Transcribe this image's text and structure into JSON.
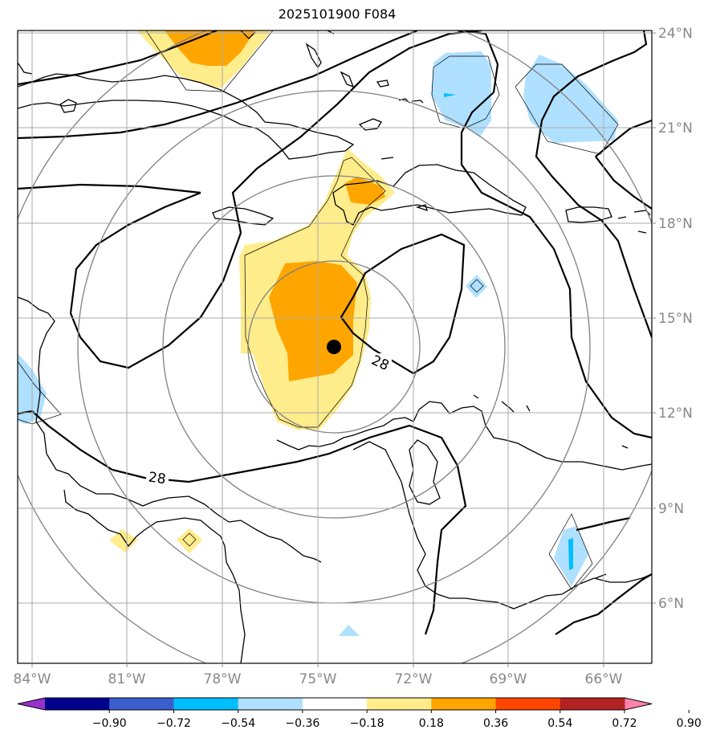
{
  "title": "2025101900 F084",
  "lat_labels": [
    "24°N",
    "21°N",
    "18°N",
    "15°N",
    "12°N",
    "9°N",
    "6°N"
  ],
  "lon_labels": [
    "84°W",
    "81°W",
    "78°W",
    "75°W",
    "72°W",
    "69°W",
    "66°W"
  ],
  "contour_labels": [
    "28",
    "28"
  ],
  "colorbar": {
    "ticks": [
      "−0.90",
      "−0.72",
      "−0.54",
      "−0.36",
      "−0.18",
      "0.18",
      "0.36",
      "0.54",
      "0.72",
      "0.90"
    ],
    "colors": [
      "#9932cc",
      "#00008b",
      "#3a5fcd",
      "#00bfff",
      "#b0e0ff",
      "#ffffff",
      "#ffec8b",
      "#ffa500",
      "#ff4500",
      "#b22222",
      "#ff82ab"
    ]
  },
  "colors": {
    "coast": "#000000",
    "grid": "#aaaaaa",
    "range_rings": "#808080",
    "storm_center": "#000000"
  }
}
